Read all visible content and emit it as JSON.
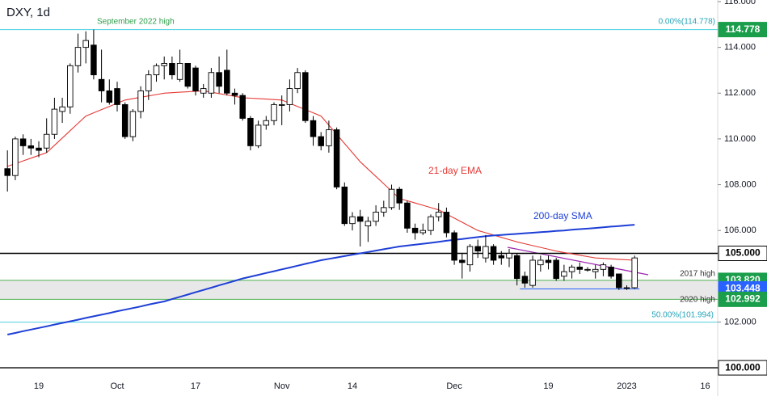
{
  "chart_data": {
    "type": "candlestick",
    "title": "DXY, 1d",
    "categories": [
      null,
      null,
      null,
      null,
      "19",
      null,
      null,
      null,
      null,
      null,
      null,
      null,
      null,
      null,
      "Oct",
      null,
      null,
      null,
      null,
      null,
      null,
      null,
      null,
      null,
      "17",
      null,
      null,
      null,
      null,
      null,
      null,
      null,
      null,
      null,
      null,
      "Nov",
      null,
      null,
      null,
      null,
      null,
      null,
      null,
      null,
      "14",
      null,
      null,
      null,
      null,
      null,
      null,
      null,
      null,
      null,
      null,
      null,
      null,
      "Dec",
      null,
      null,
      null,
      null,
      null,
      null,
      null,
      null,
      null,
      null,
      null,
      "19",
      null,
      null,
      null,
      null,
      null,
      null,
      null,
      null,
      null,
      "2023",
      null,
      null,
      null,
      null,
      null,
      null,
      null,
      null,
      null,
      "16",
      null
    ],
    "open": [
      108.7,
      108.4,
      110.0,
      109.7,
      109.6,
      109.6,
      110.2,
      111.2,
      111.4,
      113.2,
      114.0,
      114.1,
      112.6,
      112.1,
      112.2,
      111.5,
      110.1,
      111.2,
      112.1,
      112.8,
      113.2,
      113.3,
      112.6,
      113.3,
      113.1,
      112.0,
      112.0,
      112.9,
      113.0,
      112.0,
      111.9,
      110.9,
      109.7,
      110.6,
      110.8,
      111.5,
      111.5,
      112.2,
      112.9,
      110.8,
      110.1,
      109.7,
      110.4,
      107.9,
      106.3,
      106.6,
      106.2,
      106.4,
      106.8,
      107.0,
      107.8,
      107.2,
      106.1,
      105.9,
      106.0,
      106.6,
      106.8,
      105.9,
      104.7,
      104.5,
      105.3,
      104.8,
      105.3,
      104.9,
      104.8,
      104.9,
      104.0,
      103.6,
      104.5,
      104.7,
      104.7,
      104.0,
      104.2,
      104.4,
      104.3,
      104.2,
      104.3,
      104.4,
      104.1,
      103.5,
      103.5,
      null,
      null,
      null,
      null,
      null,
      null,
      null,
      null,
      null,
      null
    ],
    "high": [
      109.5,
      110.1,
      110.2,
      110.0,
      109.9,
      110.9,
      111.8,
      111.8,
      113.3,
      114.6,
      114.7,
      114.778,
      113.9,
      112.6,
      112.5,
      111.6,
      111.3,
      112.3,
      113.0,
      113.3,
      113.6,
      113.6,
      113.9,
      113.3,
      113.2,
      112.4,
      113.1,
      113.6,
      113.9,
      112.2,
      112.0,
      111.0,
      110.8,
      111.0,
      111.6,
      111.9,
      112.6,
      113.1,
      113.0,
      111.0,
      110.3,
      110.8,
      110.5,
      108.1,
      106.8,
      106.9,
      106.6,
      107.1,
      107.3,
      108.0,
      107.9,
      107.3,
      106.3,
      106.3,
      106.7,
      107.2,
      107.0,
      106.0,
      105.0,
      105.4,
      105.6,
      105.8,
      105.4,
      105.1,
      105.2,
      105.0,
      104.2,
      104.9,
      104.9,
      104.9,
      104.8,
      104.5,
      104.5,
      104.6,
      104.4,
      104.5,
      104.6,
      104.5,
      104.1,
      103.6,
      104.9,
      null,
      null,
      null,
      null,
      null,
      null,
      null,
      null,
      null,
      null
    ],
    "low": [
      107.7,
      108.2,
      109.3,
      109.3,
      109.2,
      109.4,
      110.0,
      110.7,
      111.1,
      112.9,
      113.3,
      112.6,
      111.6,
      111.5,
      111.2,
      110.0,
      109.9,
      110.9,
      111.7,
      112.5,
      112.6,
      112.6,
      112.5,
      112.2,
      111.9,
      111.8,
      111.8,
      112.0,
      111.9,
      111.5,
      110.8,
      109.5,
      109.6,
      110.4,
      110.6,
      110.6,
      111.2,
      112.0,
      110.7,
      109.7,
      109.5,
      109.4,
      107.8,
      106.2,
      106.0,
      105.3,
      105.5,
      106.2,
      106.6,
      106.9,
      106.9,
      105.9,
      105.6,
      105.8,
      105.8,
      106.4,
      105.7,
      104.5,
      103.9,
      104.2,
      104.8,
      104.6,
      104.5,
      104.5,
      104.4,
      103.6,
      103.5,
      103.5,
      104.2,
      104.3,
      103.8,
      103.8,
      103.9,
      104.1,
      104.2,
      103.9,
      104.0,
      103.9,
      103.4,
      103.4,
      103.45,
      null,
      null,
      null,
      null,
      null,
      null,
      null,
      null,
      null,
      null
    ],
    "close": [
      108.4,
      110.0,
      109.7,
      109.6,
      109.5,
      110.2,
      111.3,
      111.4,
      113.2,
      114.0,
      114.3,
      112.8,
      112.1,
      111.6,
      111.5,
      110.1,
      111.2,
      112.1,
      112.8,
      113.2,
      113.3,
      112.8,
      113.3,
      112.3,
      112.1,
      112.2,
      112.9,
      112.3,
      112.0,
      111.9,
      110.9,
      109.7,
      110.6,
      110.8,
      111.5,
      111.5,
      112.2,
      112.9,
      110.8,
      110.1,
      109.7,
      110.4,
      107.9,
      106.3,
      106.6,
      106.4,
      106.4,
      106.8,
      107.0,
      107.8,
      107.2,
      106.1,
      105.9,
      106.0,
      106.6,
      106.8,
      105.9,
      104.7,
      104.6,
      105.3,
      105.1,
      105.3,
      104.7,
      104.8,
      105.0,
      103.9,
      103.7,
      104.7,
      104.7,
      104.6,
      103.9,
      104.2,
      104.4,
      104.3,
      104.3,
      104.3,
      104.5,
      104.0,
      103.5,
      103.5,
      104.8,
      null,
      null,
      null,
      null,
      null,
      null,
      null,
      null,
      null,
      null
    ],
    "up_color": "#ffffff",
    "down_color": "#000000",
    "series": [
      {
        "name": "21-day EMA",
        "color": "#e53935",
        "values": [
          108.8,
          108.92,
          109.04,
          109.16,
          109.28,
          109.4,
          109.72,
          110.04,
          110.36,
          110.68,
          111.0,
          111.14,
          111.28,
          111.42,
          111.56,
          111.7,
          111.76,
          111.82,
          111.88,
          111.94,
          112.0,
          112.02,
          112.04,
          112.06,
          112.08,
          112.1,
          112.04,
          111.98,
          111.92,
          111.86,
          111.8,
          111.78,
          111.76,
          111.74,
          111.72,
          111.7,
          111.56,
          111.42,
          111.28,
          111.14,
          111.0,
          110.6,
          110.2,
          109.8,
          109.4,
          109.0,
          108.68,
          108.36,
          108.04,
          107.72,
          107.4,
          107.3,
          107.2,
          107.1,
          107.0,
          106.9,
          106.72,
          106.54,
          106.36,
          106.18,
          106.0,
          105.9,
          105.8,
          105.7,
          105.6,
          105.5,
          105.42,
          105.34,
          105.26,
          105.18,
          105.1,
          105.04,
          104.98,
          104.92,
          104.86,
          104.8,
          104.78,
          104.76,
          104.74,
          104.72,
          104.7,
          null,
          null,
          null,
          null,
          null,
          null,
          null,
          null,
          null,
          null
        ]
      },
      {
        "name": "200-day SMA",
        "color": "#1e3fd6",
        "values": [
          101.45,
          101.52,
          101.6,
          101.67,
          101.74,
          101.81,
          101.89,
          101.96,
          102.03,
          102.1,
          102.18,
          102.25,
          102.32,
          102.39,
          102.47,
          102.54,
          102.61,
          102.68,
          102.76,
          102.83,
          102.9,
          103.0,
          103.1,
          103.2,
          103.3,
          103.4,
          103.5,
          103.6,
          103.7,
          103.8,
          103.9,
          103.98,
          104.06,
          104.14,
          104.22,
          104.3,
          104.38,
          104.46,
          104.54,
          104.62,
          104.7,
          104.76,
          104.82,
          104.88,
          104.94,
          105.0,
          105.06,
          105.12,
          105.18,
          105.24,
          105.3,
          105.34,
          105.38,
          105.42,
          105.46,
          105.5,
          105.55,
          105.59,
          105.63,
          105.67,
          105.71,
          105.75,
          105.78,
          105.8,
          105.83,
          105.85,
          105.88,
          105.9,
          105.93,
          105.95,
          105.98,
          106.0,
          106.03,
          106.06,
          106.08,
          106.11,
          106.14,
          106.17,
          106.19,
          106.22,
          106.25,
          null,
          null,
          null,
          null,
          null,
          null,
          null,
          null,
          null,
          null
        ]
      }
    ],
    "ylim": [
      99.65,
      116.07
    ],
    "yticks": [
      {
        "value": 100,
        "label": "100.000"
      },
      {
        "value": 102,
        "label": "102.000"
      },
      {
        "value": 106,
        "label": "106.000"
      },
      {
        "value": 108,
        "label": "108.000"
      },
      {
        "value": 110,
        "label": "110.000"
      },
      {
        "value": 112,
        "label": "112.000"
      },
      {
        "value": 114,
        "label": "114.000"
      },
      {
        "value": 116,
        "label": "116.000"
      }
    ],
    "levels": [
      {
        "value": 114.778,
        "label": "114.778",
        "color": "#1b9e4b",
        "line_color": "#4dd0e1"
      },
      {
        "value": 105.0,
        "label": "105.000",
        "color": "#ffffff",
        "line_color": "#000000"
      },
      {
        "value": 103.82,
        "label": "103.820",
        "color": "#1b9e4b",
        "line_color": "#4caf50"
      },
      {
        "value": 103.448,
        "label": "103.448",
        "color": "#2962ff",
        "line_color": "#2962ff"
      },
      {
        "value": 102.992,
        "label": "102.992",
        "color": "#1b9e4b",
        "line_color": "#4caf50"
      },
      {
        "value": 101.994,
        "line_color": "#4dd0e1"
      },
      {
        "value": 100.0,
        "label": "100.000",
        "color": "#ffffff",
        "line_color": "#000000"
      }
    ],
    "annotations": [
      {
        "text": "September 2022 high",
        "color": "#2e9e4a"
      },
      {
        "text": "0.00%(114.778)",
        "color": "#26a5b8"
      },
      {
        "text": "2017 high",
        "color": "#333333"
      },
      {
        "text": "2020 high",
        "color": "#333333"
      },
      {
        "text": "50.00%(101.994)",
        "color": "#26a5b8"
      }
    ]
  }
}
